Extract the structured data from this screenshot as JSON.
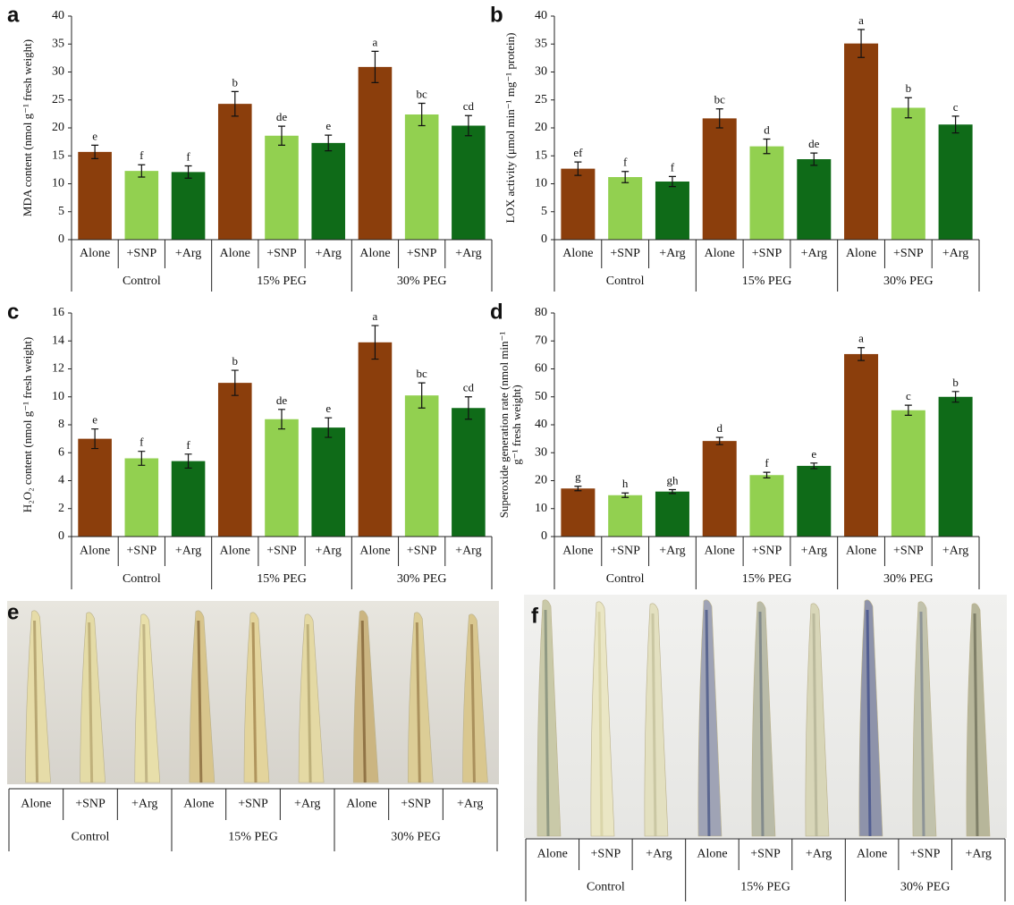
{
  "chart_data": [
    {
      "type": "bar",
      "panel": "a",
      "y_label": "MDA content (nmol g⁻¹ fresh weight)",
      "categories": [
        "Alone",
        "+SNP",
        "+Arg",
        "Alone",
        "+SNP",
        "+Arg",
        "Alone",
        "+SNP",
        "+Arg"
      ],
      "groups": [
        "Control",
        "15% PEG",
        "30% PEG"
      ],
      "values": [
        15.7,
        12.3,
        12.1,
        24.3,
        18.6,
        17.3,
        30.9,
        22.4,
        20.4
      ],
      "errors": [
        1.2,
        1.1,
        1.1,
        2.2,
        1.7,
        1.4,
        2.8,
        2.0,
        1.8
      ],
      "letters": [
        "e",
        "f",
        "f",
        "b",
        "de",
        "e",
        "a",
        "bc",
        "cd"
      ],
      "colors": [
        "#8b3e0c",
        "#92d050",
        "#0f6b18"
      ],
      "ylim": [
        0,
        40
      ],
      "yticks": [
        0,
        5,
        10,
        15,
        20,
        25,
        30,
        35,
        40
      ]
    },
    {
      "type": "bar",
      "panel": "b",
      "y_label": "LOX activity (μmol min⁻¹ mg⁻¹ protein)",
      "categories": [
        "Alone",
        "+SNP",
        "+Arg",
        "Alone",
        "+SNP",
        "+Arg",
        "Alone",
        "+SNP",
        "+Arg"
      ],
      "groups": [
        "Control",
        "15% PEG",
        "30% PEG"
      ],
      "values": [
        12.7,
        11.2,
        10.4,
        21.7,
        16.7,
        14.4,
        35.1,
        23.6,
        20.6
      ],
      "errors": [
        1.2,
        1.0,
        0.9,
        1.7,
        1.3,
        1.1,
        2.5,
        1.8,
        1.5
      ],
      "letters": [
        "ef",
        "f",
        "f",
        "bc",
        "d",
        "de",
        "a",
        "b",
        "c"
      ],
      "colors": [
        "#8b3e0c",
        "#92d050",
        "#0f6b18"
      ],
      "ylim": [
        0,
        40
      ],
      "yticks": [
        0,
        5,
        10,
        15,
        20,
        25,
        30,
        35,
        40
      ]
    },
    {
      "type": "bar",
      "panel": "c",
      "y_label": "H₂O₂ content (nmol g⁻¹ fresh weight)",
      "categories": [
        "Alone",
        "+SNP",
        "+Arg",
        "Alone",
        "+SNP",
        "+Arg",
        "Alone",
        "+SNP",
        "+Arg"
      ],
      "groups": [
        "Control",
        "15% PEG",
        "30% PEG"
      ],
      "values": [
        7.0,
        5.6,
        5.4,
        11.0,
        8.4,
        7.8,
        13.9,
        10.1,
        9.2
      ],
      "errors": [
        0.7,
        0.5,
        0.5,
        0.9,
        0.7,
        0.7,
        1.2,
        0.9,
        0.8
      ],
      "letters": [
        "e",
        "f",
        "f",
        "b",
        "de",
        "e",
        "a",
        "bc",
        "cd"
      ],
      "colors": [
        "#8b3e0c",
        "#92d050",
        "#0f6b18"
      ],
      "ylim": [
        0,
        16
      ],
      "yticks": [
        0,
        2,
        4,
        6,
        8,
        10,
        12,
        14,
        16
      ]
    },
    {
      "type": "bar",
      "panel": "d",
      "y_label": [
        "Superoxide generation rate (nmol min⁻¹",
        "g⁻¹ fresh weight)"
      ],
      "categories": [
        "Alone",
        "+SNP",
        "+Arg",
        "Alone",
        "+SNP",
        "+Arg",
        "Alone",
        "+SNP",
        "+Arg"
      ],
      "groups": [
        "Control",
        "15% PEG",
        "30% PEG"
      ],
      "values": [
        17.2,
        14.8,
        16.1,
        34.2,
        22.0,
        25.3,
        65.3,
        45.2,
        50.0
      ],
      "errors": [
        0.8,
        0.8,
        0.7,
        1.3,
        1.0,
        1.0,
        2.3,
        1.8,
        1.9
      ],
      "letters": [
        "g",
        "h",
        "gh",
        "d",
        "f",
        "e",
        "a",
        "c",
        "b"
      ],
      "colors": [
        "#8b3e0c",
        "#92d050",
        "#0f6b18"
      ],
      "ylim": [
        0,
        80
      ],
      "yticks": [
        0,
        10,
        20,
        30,
        40,
        50,
        60,
        70,
        80
      ]
    }
  ],
  "images": [
    {
      "panel": "e",
      "categories": [
        "Alone",
        "+SNP",
        "+Arg",
        "Alone",
        "+SNP",
        "+Arg",
        "Alone",
        "+SNP",
        "+Arg"
      ],
      "groups": [
        "Control",
        "15% PEG",
        "30% PEG"
      ]
    },
    {
      "panel": "f",
      "categories": [
        "Alone",
        "+SNP",
        "+Arg",
        "Alone",
        "+SNP",
        "+Arg",
        "Alone",
        "+SNP",
        "+Arg"
      ],
      "groups": [
        "Control",
        "15% PEG",
        "30% PEG"
      ]
    }
  ]
}
